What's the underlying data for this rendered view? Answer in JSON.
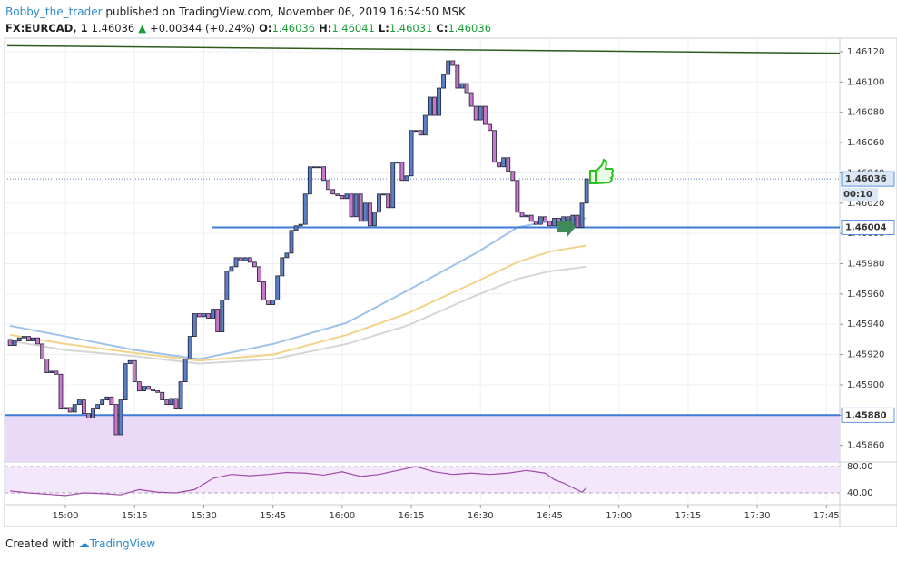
{
  "header": {
    "author": "Bobby_the_trader",
    "published": "published on TradingView.com, November 06, 2019 16:54:50 MSK",
    "symbol": "FX:EURCAD, 1",
    "last": "1.46036",
    "change": "+0.00344 (+0.24%)",
    "o_label": "O:",
    "o": "1.46036",
    "h_label": "H:",
    "h": "1.46041",
    "l_label": "L:",
    "l": "1.46031",
    "c_label": "C:",
    "c": "1.46036"
  },
  "footer": {
    "created": "Created with",
    "brand": "TradingView"
  },
  "chart_data": {
    "type": "candlestick",
    "xlim": [
      886.8,
      1067.9
    ],
    "xticks": [
      {
        "value": 900,
        "label": "15:00"
      },
      {
        "value": 915,
        "label": "15:15"
      },
      {
        "value": 930,
        "label": "15:30"
      },
      {
        "value": 945,
        "label": "15:45"
      },
      {
        "value": 960,
        "label": "16:00"
      },
      {
        "value": 975,
        "label": "16:15"
      },
      {
        "value": 990,
        "label": "16:30"
      },
      {
        "value": 1005,
        "label": "16:45"
      },
      {
        "value": 1020,
        "label": "17:00"
      },
      {
        "value": 1035,
        "label": "17:15"
      },
      {
        "value": 1050,
        "label": "17:30"
      },
      {
        "value": 1065,
        "label": "17:45"
      }
    ],
    "ylim": [
      1.45849,
      1.46129
    ],
    "yticks": [
      {
        "value": 1.4612,
        "label": "1.46120"
      },
      {
        "value": 1.461,
        "label": "1.46100"
      },
      {
        "value": 1.4608,
        "label": "1.46080"
      },
      {
        "value": 1.4606,
        "label": "1.46060"
      },
      {
        "value": 1.4604,
        "label": "1.46040"
      },
      {
        "value": 1.4602,
        "label": "1.46020"
      },
      {
        "value": 1.46,
        "label": "1.46000"
      },
      {
        "value": 1.4598,
        "label": "1.45980"
      },
      {
        "value": 1.4596,
        "label": "1.45960"
      },
      {
        "value": 1.4594,
        "label": "1.45940"
      },
      {
        "value": 1.4592,
        "label": "1.45920"
      },
      {
        "value": 1.459,
        "label": "1.45900"
      },
      {
        "value": 1.4588,
        "label": "1.45880"
      },
      {
        "value": 1.4586,
        "label": "1.45860"
      }
    ],
    "grid": true,
    "up_color": "#5b80c8",
    "down_color": "#c678c9",
    "candles": {
      "x": [
        888,
        889,
        890,
        891,
        892,
        893,
        894,
        895,
        896,
        897,
        898,
        899,
        900,
        901,
        902,
        903,
        904,
        905,
        906,
        907,
        908,
        909,
        910,
        911,
        912,
        913,
        914,
        915,
        916,
        917,
        918,
        919,
        920,
        921,
        922,
        923,
        924,
        925,
        926,
        927,
        928,
        929,
        930,
        931,
        932,
        933,
        934,
        935,
        936,
        937,
        938,
        939,
        940,
        941,
        942,
        943,
        944,
        945,
        946,
        947,
        948,
        949,
        950,
        951,
        952,
        953,
        954,
        955,
        956,
        957,
        958,
        959,
        960,
        961,
        962,
        963,
        964,
        965,
        966,
        967,
        968,
        969,
        970,
        971,
        972,
        973,
        974,
        975,
        976,
        977,
        978,
        979,
        980,
        981,
        982,
        983,
        984,
        985,
        986,
        987,
        988,
        989,
        990,
        991,
        992,
        993,
        994,
        995,
        996,
        997,
        998,
        999,
        1000,
        1001,
        1002,
        1003,
        1004,
        1005,
        1006,
        1007,
        1008,
        1009,
        1010,
        1011,
        1012,
        1013
      ],
      "open": [
        1.4593,
        1.45926,
        1.45929,
        1.45931,
        1.45932,
        1.45929,
        1.45931,
        1.45927,
        1.45917,
        1.45908,
        1.45909,
        1.45907,
        1.45884,
        1.45885,
        1.45882,
        1.45887,
        1.4589,
        1.45881,
        1.45878,
        1.45884,
        1.45887,
        1.4589,
        1.45892,
        1.45887,
        1.45867,
        1.4589,
        1.45914,
        1.45916,
        1.45902,
        1.45896,
        1.45899,
        1.45897,
        1.45896,
        1.45895,
        1.4589,
        1.45887,
        1.45891,
        1.45884,
        1.45902,
        1.45917,
        1.45932,
        1.45947,
        1.45945,
        1.45947,
        1.45944,
        1.4595,
        1.45935,
        1.45956,
        1.45975,
        1.45978,
        1.45984,
        1.45982,
        1.45984,
        1.45981,
        1.45978,
        1.45968,
        1.45956,
        1.45953,
        1.45956,
        1.45972,
        1.45984,
        1.45987,
        1.46002,
        1.46005,
        1.46006,
        1.46026,
        1.46044,
        1.46044,
        1.46044,
        1.46035,
        1.46029,
        1.46026,
        1.46025,
        1.46023,
        1.46026,
        1.46011,
        1.46026,
        1.46008,
        1.4602,
        1.46005,
        1.46014,
        1.46026,
        1.46026,
        1.46017,
        1.46047,
        1.46047,
        1.46035,
        1.46038,
        1.46068,
        1.46068,
        1.46065,
        1.46078,
        1.4609,
        1.46078,
        1.46096,
        1.46105,
        1.46114,
        1.46111,
        1.46096,
        1.46099,
        1.46093,
        1.46084,
        1.46075,
        1.46084,
        1.46072,
        1.46068,
        1.46047,
        1.46044,
        1.4605,
        1.46041,
        1.46035,
        1.46014,
        1.46011,
        1.46012,
        1.46008,
        1.46006,
        1.46011,
        1.46008,
        1.46005,
        1.4601,
        1.46006,
        1.46011,
        1.46004,
        1.46012,
        1.46004,
        1.4602
      ],
      "close": [
        1.45926,
        1.45929,
        1.45931,
        1.45932,
        1.45929,
        1.45931,
        1.45927,
        1.45917,
        1.45908,
        1.45909,
        1.45907,
        1.45884,
        1.45885,
        1.45882,
        1.45887,
        1.4589,
        1.45881,
        1.45878,
        1.45884,
        1.45887,
        1.4589,
        1.45892,
        1.45887,
        1.45867,
        1.4589,
        1.45914,
        1.45916,
        1.45902,
        1.45896,
        1.45899,
        1.45897,
        1.45896,
        1.45895,
        1.4589,
        1.45887,
        1.45891,
        1.45884,
        1.45902,
        1.45917,
        1.45932,
        1.45947,
        1.45945,
        1.45947,
        1.45944,
        1.4595,
        1.45935,
        1.45956,
        1.45975,
        1.45978,
        1.45984,
        1.45982,
        1.45984,
        1.45981,
        1.45978,
        1.45968,
        1.45956,
        1.45953,
        1.45956,
        1.45972,
        1.45984,
        1.45987,
        1.46002,
        1.46005,
        1.46006,
        1.46026,
        1.46044,
        1.46044,
        1.46044,
        1.46035,
        1.46029,
        1.46026,
        1.46025,
        1.46023,
        1.46026,
        1.46011,
        1.46026,
        1.46008,
        1.4602,
        1.46005,
        1.46014,
        1.46026,
        1.46026,
        1.46017,
        1.46047,
        1.46047,
        1.46035,
        1.46038,
        1.46068,
        1.46068,
        1.46065,
        1.46078,
        1.4609,
        1.46078,
        1.46096,
        1.46105,
        1.46114,
        1.46111,
        1.46096,
        1.46099,
        1.46093,
        1.46084,
        1.46075,
        1.46084,
        1.46072,
        1.46068,
        1.46047,
        1.46044,
        1.4605,
        1.46041,
        1.46035,
        1.46014,
        1.46011,
        1.46012,
        1.46008,
        1.46006,
        1.46011,
        1.46008,
        1.46005,
        1.4601,
        1.46006,
        1.46011,
        1.46004,
        1.46012,
        1.46004,
        1.4602,
        1.46036
      ]
    },
    "moving_averages": [
      {
        "color": "#9fc2ea",
        "x": [
          888,
          900,
          915,
          929,
          945,
          961,
          974,
          989,
          998,
          1005,
          1013
        ],
        "values": [
          1.45939,
          1.45932,
          1.45923,
          1.45917,
          1.45927,
          1.45941,
          1.45962,
          1.45987,
          1.46004,
          1.46008,
          1.4601
        ]
      },
      {
        "color": "#f2d38a",
        "x": [
          888,
          900,
          915,
          929,
          945,
          961,
          974,
          989,
          998,
          1005,
          1013
        ],
        "values": [
          1.45933,
          1.45927,
          1.45921,
          1.45916,
          1.4592,
          1.45933,
          1.45947,
          1.45968,
          1.45981,
          1.45988,
          1.45992
        ]
      },
      {
        "color": "#d6d6d6",
        "x": [
          888,
          900,
          915,
          929,
          945,
          961,
          974,
          989,
          998,
          1005,
          1013
        ],
        "values": [
          1.45929,
          1.45923,
          1.45919,
          1.45914,
          1.45917,
          1.45927,
          1.45939,
          1.45959,
          1.4597,
          1.45975,
          1.45978
        ]
      }
    ],
    "trendline": {
      "color": "#2e5a1c",
      "x": [
        887.4,
        1067.9
      ],
      "values": [
        1.46124,
        1.46119
      ]
    },
    "hlines": [
      {
        "value": 1.46004,
        "from": 931.7,
        "color": "#3d7bd5"
      },
      {
        "value": 1.4588,
        "from": 886.8,
        "color": "#3d7bd5"
      }
    ],
    "zone": {
      "top": 1.4588,
      "bottom": 1.45849,
      "color": "#e9d5f7"
    },
    "price_labels": [
      {
        "value": 1.46036,
        "label": "1.46036"
      },
      {
        "value": 1.46004,
        "label": "1.46004"
      },
      {
        "value": 1.4588,
        "label": "1.45880"
      }
    ],
    "countdown": "00:10",
    "rsi": {
      "color": "#a04aa8",
      "ylim": [
        27.6,
        85.5
      ],
      "yticks": [
        {
          "value": 80,
          "label": "80.00"
        },
        {
          "value": 40,
          "label": "40.00"
        }
      ],
      "x": [
        888,
        892,
        896,
        900,
        904,
        908,
        912,
        916,
        920,
        924,
        928,
        932,
        936,
        940,
        944,
        948,
        952,
        956,
        960,
        964,
        968,
        972,
        976,
        980,
        984,
        988,
        992,
        996,
        1000,
        1004,
        1006,
        1008,
        1012,
        1013
      ],
      "values": [
        43,
        40,
        38,
        36,
        40,
        39,
        37,
        45,
        41,
        40,
        45,
        62,
        68,
        66,
        68,
        71,
        70,
        67,
        72,
        65,
        68,
        74,
        80,
        72,
        68,
        70,
        68,
        70,
        74,
        70,
        60,
        55,
        41,
        48
      ]
    }
  }
}
